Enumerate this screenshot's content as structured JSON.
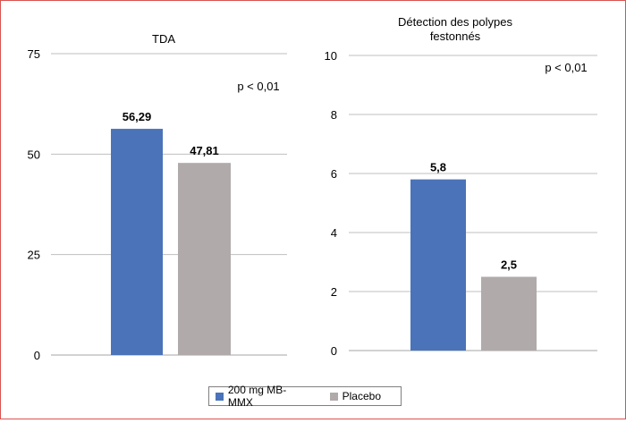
{
  "chart_data": [
    {
      "type": "bar",
      "title": "TDA",
      "categories": [
        "200 mg MB-MMX",
        "Placebo"
      ],
      "values": [
        56.29,
        47.81
      ],
      "value_labels": [
        "56,29",
        "47,81"
      ],
      "annotation": "p < 0,01",
      "ylim": [
        0,
        75
      ],
      "yticks": [
        0,
        25,
        50,
        75
      ],
      "grid": true
    },
    {
      "type": "bar",
      "title": [
        "Détection des polypes",
        "festonnés"
      ],
      "categories": [
        "200 mg MB-MMX",
        "Placebo"
      ],
      "values": [
        5.8,
        2.5
      ],
      "value_labels": [
        "5,8",
        "2,5"
      ],
      "annotation": "p < 0,01",
      "ylim": [
        0,
        10
      ],
      "yticks": [
        0,
        2,
        4,
        6,
        8,
        10
      ],
      "grid": true
    }
  ],
  "legend": {
    "position": "bottom-center",
    "items": [
      {
        "label": "200 mg MB-MMX",
        "color": "#4a73b9"
      },
      {
        "label": "Placebo",
        "color": "#b1aaaa"
      }
    ]
  }
}
